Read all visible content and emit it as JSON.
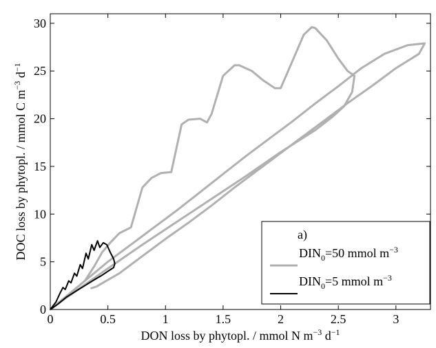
{
  "chart_data": {
    "type": "line",
    "xlabel_parts": [
      "DON loss by phytopl. / mmol N m",
      "−3",
      " d",
      "−1"
    ],
    "ylabel_parts": [
      "DOC loss by phytopl. / mmol C m",
      "−3",
      " d",
      "−1"
    ],
    "xlim": [
      0,
      3.3
    ],
    "ylim": [
      0,
      31
    ],
    "xticks": [
      0,
      0.5,
      1,
      1.5,
      2,
      2.5,
      3
    ],
    "xtick_labels": [
      "0",
      "0.5",
      "1",
      "1.5",
      "2",
      "2.5",
      "3"
    ],
    "yticks": [
      0,
      5,
      10,
      15,
      20,
      25,
      30
    ],
    "ytick_labels": [
      "0",
      "5",
      "10",
      "15",
      "20",
      "25",
      "30"
    ],
    "grid": false,
    "legend": {
      "placement": "bottom-right",
      "title": "a)",
      "entries": [
        {
          "text_parts": [
            "DIN",
            "0",
            "=50 mmol m",
            "−3"
          ],
          "color": "#b0b0b0"
        },
        {
          "text_parts": [
            "DIN",
            "0",
            "=5 mmol m",
            "−3"
          ],
          "color": "#000000"
        }
      ]
    },
    "series": [
      {
        "color": "#b0b0b0",
        "x": [
          0,
          0.1,
          0.2,
          0.3,
          0.38,
          0.45,
          0.52,
          0.6,
          0.7,
          0.8,
          0.88,
          0.96,
          1.05,
          1.14,
          1.2,
          1.3,
          1.36,
          1.4,
          1.5,
          1.6,
          1.64,
          1.75,
          1.85,
          1.95,
          2.0,
          2.1,
          2.2,
          2.27,
          2.3,
          2.4,
          2.5,
          2.58,
          2.64,
          2.62,
          2.55,
          2.45,
          2.3,
          2.0,
          1.7,
          1.4,
          1.1,
          0.8,
          0.5,
          0.3,
          0.1,
          0,
          0.35,
          0.5,
          0.7,
          0.9,
          1.1,
          1.3,
          1.5,
          1.7,
          1.9,
          2.1,
          2.3,
          2.5,
          2.7,
          2.9,
          3.1,
          3.25,
          3.2,
          3.0,
          2.8,
          2.6,
          2.4,
          2.2,
          2.0,
          1.8,
          1.6,
          1.4,
          1.2,
          1.0,
          0.8,
          0.6,
          0.4,
          0.35
        ],
        "y": [
          0,
          1.0,
          2.0,
          3.0,
          4.5,
          6.0,
          7.0,
          8.0,
          8.6,
          12.8,
          13.8,
          14.3,
          14.4,
          19.4,
          19.9,
          20.0,
          19.6,
          20.5,
          24.5,
          25.6,
          25.6,
          25.0,
          24.0,
          23.2,
          23.2,
          26.0,
          28.8,
          29.6,
          29.5,
          28.2,
          26.3,
          25.0,
          24.5,
          22.8,
          21.3,
          20.2,
          18.8,
          16.5,
          14.0,
          11.6,
          9.2,
          6.8,
          4.3,
          2.6,
          0.9,
          0,
          3.5,
          5.0,
          6.8,
          8.6,
          10.4,
          12.3,
          14.2,
          16.1,
          17.9,
          19.7,
          21.6,
          23.4,
          25.3,
          26.8,
          27.7,
          27.9,
          26.8,
          25.3,
          23.5,
          21.8,
          20.0,
          18.2,
          16.4,
          14.6,
          12.8,
          10.9,
          9.1,
          7.4,
          5.6,
          3.8,
          2.4,
          2.2
        ]
      },
      {
        "color": "#000000",
        "x": [
          0,
          0.05,
          0.08,
          0.11,
          0.13,
          0.16,
          0.18,
          0.21,
          0.23,
          0.26,
          0.28,
          0.31,
          0.33,
          0.36,
          0.38,
          0.41,
          0.43,
          0.46,
          0.49,
          0.52,
          0.55,
          0.56,
          0.55,
          0.5,
          0.45,
          0.38,
          0.3,
          0.22,
          0.14,
          0.07,
          0
        ],
        "y": [
          0,
          0.8,
          1.6,
          2.3,
          2.1,
          3.0,
          2.8,
          3.8,
          3.5,
          4.7,
          4.3,
          5.9,
          5.3,
          6.8,
          6.2,
          7.2,
          6.5,
          7.0,
          6.8,
          6.0,
          5.3,
          4.8,
          4.4,
          4.0,
          3.6,
          3.1,
          2.5,
          1.9,
          1.3,
          0.6,
          0
        ]
      }
    ]
  }
}
